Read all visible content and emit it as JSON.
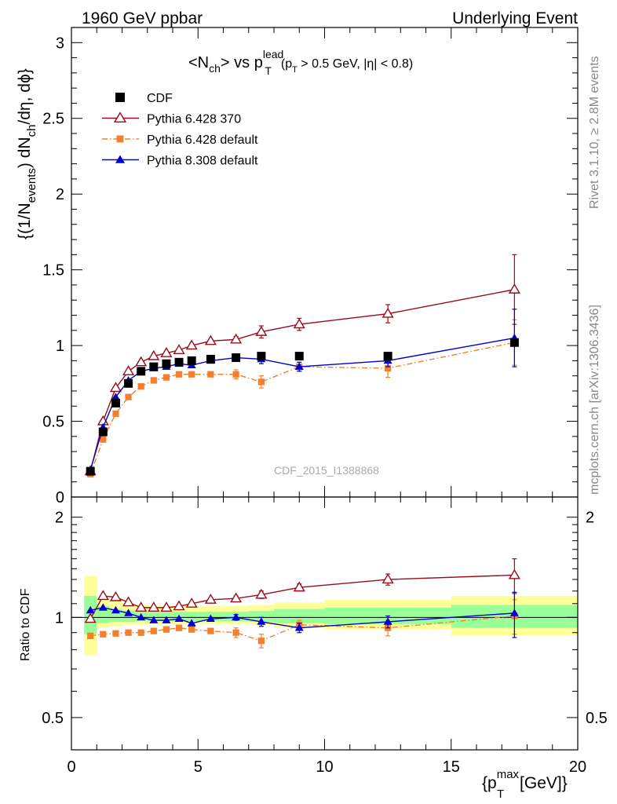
{
  "header": {
    "left": "1960 GeV ppbar",
    "right": "Underlying Event"
  },
  "watermark": "CDF_2015_I1388868",
  "side_labels": {
    "rivet": "Rivet 3.1.10, ≥ 2.8M events",
    "mcplots": "mcplots.cern.ch [arXiv:1306.3436]"
  },
  "colors": {
    "cdf": "#000000",
    "pythia6_370": "#9a0c1c",
    "pythia6_default": "#f2802e",
    "pythia8_default": "#0000cc",
    "band_yellow": "#ffff99",
    "band_green": "#99ff99"
  },
  "chart_data": [
    {
      "type": "scatter",
      "title": {
        "base": "<N",
        "sub1": "ch",
        "mid": "> vs p",
        "sup": "lead",
        "sub2": "T",
        "cut": "(p",
        "cut_sub": "T",
        "cut_rest": " > 0.5 GeV, |η| < 0.8)"
      },
      "ylabel": {
        "a": "{(1/N",
        "a_sub": "events",
        "b": ") dN",
        "b_sub": "ch",
        "c": "/dη, dϕ}"
      },
      "xlim": [
        0,
        20
      ],
      "ylim": [
        0,
        3.1
      ],
      "y_ticks": [
        0,
        0.5,
        1,
        1.5,
        2,
        2.5,
        3
      ],
      "y_tick_labels": [
        "0",
        "0.5",
        "1",
        "1.5",
        "2",
        "2.5",
        "3"
      ],
      "x_ticks": [
        0,
        5,
        10,
        15,
        20
      ],
      "legend": {
        "position": "top-left",
        "entries": [
          "CDF",
          "Pythia 6.428 370",
          "Pythia 6.428 default",
          "Pythia 8.308 default"
        ]
      },
      "series": [
        {
          "name": "CDF",
          "marker": "square",
          "x": [
            0.75,
            1.25,
            1.75,
            2.25,
            2.75,
            3.25,
            3.75,
            4.25,
            4.75,
            5.5,
            6.5,
            7.5,
            9.0,
            12.5,
            17.5
          ],
          "y": [
            0.17,
            0.43,
            0.62,
            0.75,
            0.83,
            0.86,
            0.88,
            0.89,
            0.9,
            0.91,
            0.92,
            0.93,
            0.93,
            0.93,
            1.02
          ],
          "err": [
            0.01,
            0.01,
            0.01,
            0.01,
            0.01,
            0.01,
            0.01,
            0.01,
            0.01,
            0.01,
            0.01,
            0.01,
            0.02,
            0.02,
            0.02
          ]
        },
        {
          "name": "Pythia 6.428 370",
          "marker": "triangle-open",
          "line": "solid",
          "x": [
            0.75,
            1.25,
            1.75,
            2.25,
            2.75,
            3.25,
            3.75,
            4.25,
            4.75,
            5.5,
            6.5,
            7.5,
            9.0,
            12.5,
            17.5
          ],
          "y": [
            0.17,
            0.5,
            0.72,
            0.83,
            0.89,
            0.93,
            0.95,
            0.97,
            1.0,
            1.03,
            1.04,
            1.09,
            1.14,
            1.21,
            1.37
          ],
          "err": [
            0.01,
            0.01,
            0.01,
            0.01,
            0.01,
            0.01,
            0.01,
            0.01,
            0.01,
            0.01,
            0.02,
            0.04,
            0.04,
            0.06,
            0.23
          ]
        },
        {
          "name": "Pythia 6.428 default",
          "marker": "square-small",
          "line": "dashdot",
          "x": [
            0.75,
            1.25,
            1.75,
            2.25,
            2.75,
            3.25,
            3.75,
            4.25,
            4.75,
            5.5,
            6.5,
            7.5,
            9.0,
            12.5,
            17.5
          ],
          "y": [
            0.15,
            0.38,
            0.55,
            0.66,
            0.73,
            0.77,
            0.79,
            0.81,
            0.81,
            0.81,
            0.81,
            0.76,
            0.86,
            0.85,
            1.02
          ],
          "err": [
            0.01,
            0.01,
            0.01,
            0.01,
            0.01,
            0.01,
            0.01,
            0.01,
            0.01,
            0.01,
            0.03,
            0.04,
            0.03,
            0.06,
            0.15
          ]
        },
        {
          "name": "Pythia 8.308 default",
          "marker": "triangle-filled",
          "line": "solid",
          "x": [
            0.75,
            1.25,
            1.75,
            2.25,
            2.75,
            3.25,
            3.75,
            4.25,
            4.75,
            5.5,
            6.5,
            7.5,
            9.0,
            12.5,
            17.5
          ],
          "y": [
            0.18,
            0.46,
            0.66,
            0.77,
            0.83,
            0.85,
            0.86,
            0.88,
            0.87,
            0.9,
            0.92,
            0.91,
            0.86,
            0.9,
            1.05
          ],
          "err": [
            0.01,
            0.01,
            0.01,
            0.01,
            0.01,
            0.01,
            0.01,
            0.01,
            0.01,
            0.01,
            0.02,
            0.03,
            0.03,
            0.04,
            0.19
          ]
        }
      ]
    },
    {
      "type": "scatter",
      "ylabel": "Ratio to CDF",
      "xlabel": {
        "a": "{p",
        "sup": "max",
        "sub": "T",
        "b": " [GeV]}"
      },
      "xlim": [
        0,
        20
      ],
      "ylim": [
        0.4,
        2.3
      ],
      "y_scale": "log",
      "y_ticks": [
        0.5,
        1,
        2
      ],
      "y_tick_labels": [
        "0.5",
        "1",
        "2"
      ],
      "x_ticks": [
        0,
        5,
        10,
        15,
        20
      ],
      "x_tick_labels": [
        "0",
        "5",
        "10",
        "15",
        "20"
      ],
      "bands": [
        {
          "x0": 0.5,
          "x1": 1.0,
          "yellow": [
            0.77,
            1.33
          ],
          "green": [
            0.89,
            1.16
          ]
        },
        {
          "x0": 1.0,
          "x1": 1.5,
          "yellow": [
            0.93,
            1.14
          ],
          "green": [
            0.96,
            1.08
          ]
        },
        {
          "x0": 1.5,
          "x1": 2.0,
          "yellow": [
            0.94,
            1.12
          ],
          "green": [
            0.97,
            1.06
          ]
        },
        {
          "x0": 2.0,
          "x1": 2.5,
          "yellow": [
            0.95,
            1.1
          ],
          "green": [
            0.97,
            1.05
          ]
        },
        {
          "x0": 2.5,
          "x1": 3.0,
          "yellow": [
            0.95,
            1.09
          ],
          "green": [
            0.975,
            1.045
          ]
        },
        {
          "x0": 3.0,
          "x1": 5.0,
          "yellow": [
            0.955,
            1.08
          ],
          "green": [
            0.975,
            1.04
          ]
        },
        {
          "x0": 5.0,
          "x1": 7.0,
          "yellow": [
            0.955,
            1.08
          ],
          "green": [
            0.975,
            1.04
          ]
        },
        {
          "x0": 7.0,
          "x1": 8.0,
          "yellow": [
            0.95,
            1.09
          ],
          "green": [
            0.97,
            1.045
          ]
        },
        {
          "x0": 8.0,
          "x1": 10.0,
          "yellow": [
            0.93,
            1.11
          ],
          "green": [
            0.96,
            1.06
          ]
        },
        {
          "x0": 10.0,
          "x1": 15.0,
          "yellow": [
            0.92,
            1.13
          ],
          "green": [
            0.955,
            1.07
          ]
        },
        {
          "x0": 15.0,
          "x1": 20.0,
          "yellow": [
            0.88,
            1.16
          ],
          "green": [
            0.93,
            1.09
          ]
        }
      ],
      "series": [
        {
          "name": "Pythia 6.428 370",
          "x": [
            0.75,
            1.25,
            1.75,
            2.25,
            2.75,
            3.25,
            3.75,
            4.25,
            4.75,
            5.5,
            6.5,
            7.5,
            9.0,
            12.5,
            17.5
          ],
          "y": [
            0.99,
            1.16,
            1.15,
            1.11,
            1.07,
            1.07,
            1.07,
            1.08,
            1.1,
            1.13,
            1.14,
            1.17,
            1.23,
            1.3,
            1.34
          ],
          "err": [
            0.01,
            0.01,
            0.01,
            0.01,
            0.01,
            0.01,
            0.01,
            0.01,
            0.01,
            0.01,
            0.02,
            0.03,
            0.03,
            0.05,
            0.16
          ]
        },
        {
          "name": "Pythia 6.428 default",
          "x": [
            0.75,
            1.25,
            1.75,
            2.25,
            2.75,
            3.25,
            3.75,
            4.25,
            4.75,
            5.5,
            6.5,
            7.5,
            9.0,
            12.5,
            17.5
          ],
          "y": [
            0.88,
            0.89,
            0.895,
            0.9,
            0.9,
            0.91,
            0.92,
            0.93,
            0.92,
            0.91,
            0.9,
            0.85,
            0.95,
            0.93,
            1.01
          ],
          "err": [
            0.01,
            0.01,
            0.01,
            0.01,
            0.01,
            0.01,
            0.01,
            0.01,
            0.01,
            0.01,
            0.03,
            0.04,
            0.03,
            0.05,
            0.12
          ]
        },
        {
          "name": "Pythia 8.308 default",
          "x": [
            0.75,
            1.25,
            1.75,
            2.25,
            2.75,
            3.25,
            3.75,
            4.25,
            4.75,
            5.5,
            6.5,
            7.5,
            9.0,
            12.5,
            17.5
          ],
          "y": [
            1.05,
            1.07,
            1.05,
            1.03,
            1.0,
            0.98,
            0.98,
            0.99,
            0.96,
            0.99,
            1.0,
            0.97,
            0.93,
            0.97,
            1.03
          ],
          "err": [
            0.01,
            0.01,
            0.01,
            0.01,
            0.01,
            0.01,
            0.01,
            0.01,
            0.01,
            0.01,
            0.02,
            0.03,
            0.03,
            0.04,
            0.16
          ]
        }
      ]
    }
  ]
}
